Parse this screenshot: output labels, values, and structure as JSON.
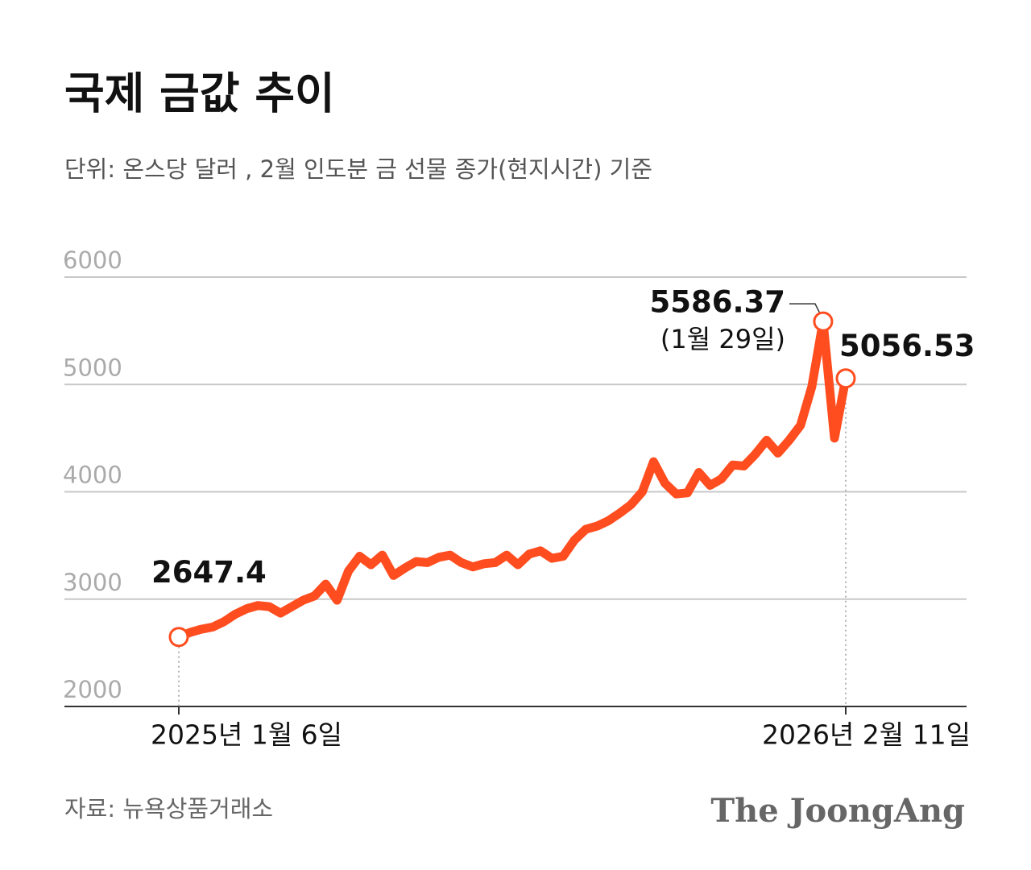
{
  "chart_data": {
    "type": "line",
    "title": "국제 금값 추이",
    "subtitle": "단위: 온스당 달러 , 2월 인도분 금 선물 종가(현지시간) 기준",
    "source": "자료: 뉴욕상품거래소",
    "brand": "The JoongAng",
    "annotations": [
      {
        "text": "(1월 29일)"
      }
    ],
    "categories": [
      "2025년 1월 6일",
      null,
      null,
      null,
      null,
      null,
      null,
      null,
      null,
      null,
      null,
      null,
      null,
      null,
      null,
      null,
      null,
      null,
      null,
      null,
      null,
      null,
      null,
      null,
      null,
      null,
      null,
      null,
      null,
      null,
      null,
      null,
      null,
      null,
      null,
      null,
      null,
      null,
      null,
      null,
      null,
      null,
      null,
      null,
      null,
      null,
      null,
      null,
      null,
      null,
      null,
      null,
      null,
      null,
      null,
      null,
      null,
      null,
      null,
      "2026년 2월 11일"
    ],
    "values": [
      2647.4,
      2690,
      2720,
      2740,
      2790,
      2860,
      2910,
      2940,
      2930,
      2870,
      2930,
      2990,
      3030,
      3140,
      2990,
      3260,
      3400,
      3320,
      3410,
      3220,
      3290,
      3350,
      3340,
      3390,
      3410,
      3340,
      3300,
      3330,
      3340,
      3410,
      3320,
      3420,
      3450,
      3380,
      3400,
      3550,
      3650,
      3680,
      3730,
      3800,
      3880,
      4000,
      4280,
      4080,
      3980,
      3990,
      4180,
      4060,
      4120,
      4250,
      4240,
      4350,
      4480,
      4360,
      4480,
      4620,
      4980,
      5586.37,
      4500,
      5056.53
    ],
    "color": "#ff4d1f",
    "ylim": [
      2000,
      6000
    ],
    "yticks": [
      2000,
      3000,
      4000,
      5000,
      6000
    ],
    "grid": true
  }
}
